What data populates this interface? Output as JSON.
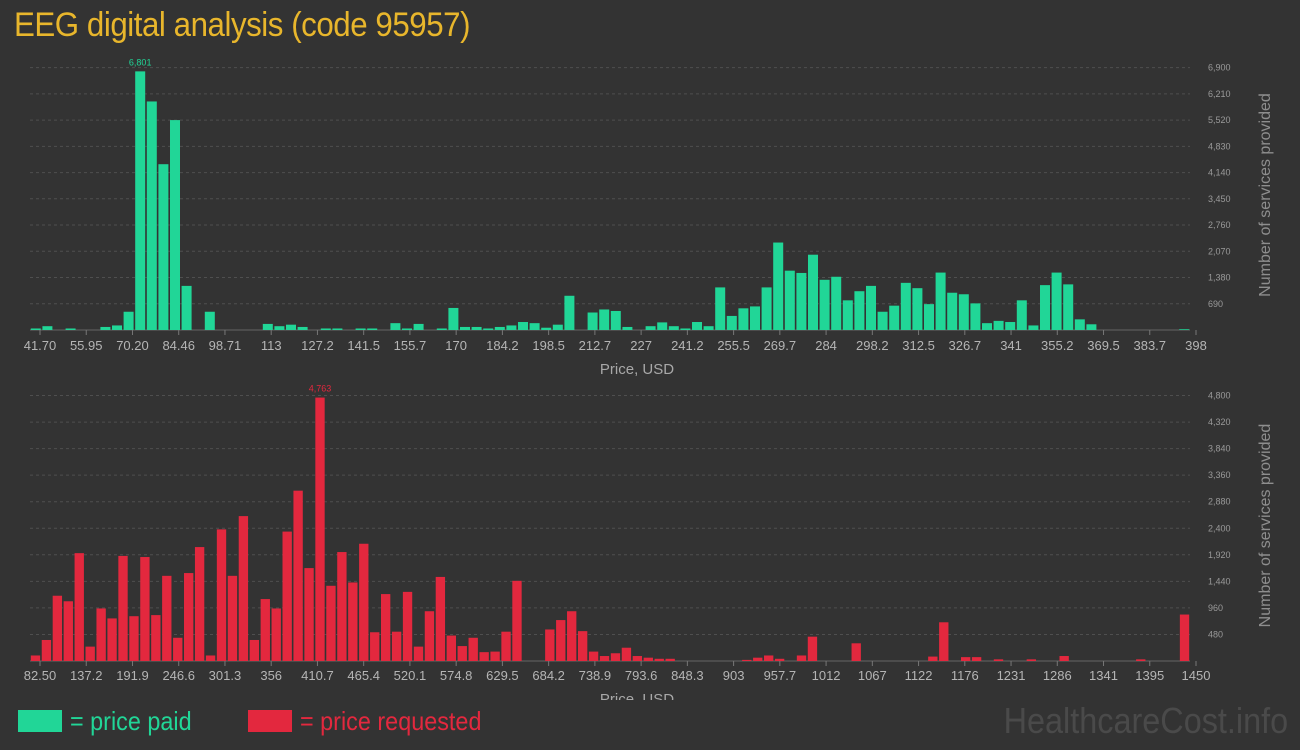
{
  "title": "EEG digital analysis (code 95957)",
  "watermark": "HealthcareCost.info",
  "legend": {
    "paid": {
      "label": "= price paid",
      "color": "#21d697"
    },
    "requested": {
      "label": "= price requested",
      "color": "#e3283e"
    }
  },
  "chart_data": [
    {
      "type": "bar",
      "color": "#21d697",
      "xlabel": "Price, USD",
      "ylabel": "Number of services provided",
      "x_tick_labels": [
        "41.70",
        "55.95",
        "70.20",
        "84.46",
        "98.71",
        "113",
        "127.2",
        "141.5",
        "155.7",
        "170",
        "184.2",
        "198.5",
        "212.7",
        "227",
        "241.2",
        "255.5",
        "269.7",
        "284",
        "298.2",
        "312.5",
        "326.7",
        "341",
        "355.2",
        "369.5",
        "383.7",
        "398"
      ],
      "y_ticks": [
        690,
        1380,
        2070,
        2760,
        3450,
        4140,
        4830,
        5520,
        6210,
        6900
      ],
      "y_tick_labels": [
        "690",
        "1,380",
        "2,070",
        "2,760",
        "3,450",
        "4,140",
        "4,830",
        "5,520",
        "6,210",
        "6,900"
      ],
      "ylim": [
        0,
        7100
      ],
      "x_range": [
        41.7,
        398
      ],
      "peak_label": "6,801",
      "grid": true,
      "values": [
        40,
        100,
        0,
        40,
        0,
        0,
        80,
        120,
        480,
        6801,
        6010,
        4360,
        5520,
        1160,
        0,
        480,
        0,
        0,
        0,
        0,
        160,
        100,
        140,
        80,
        0,
        40,
        40,
        0,
        40,
        40,
        0,
        180,
        40,
        160,
        0,
        40,
        580,
        80,
        80,
        40,
        80,
        120,
        210,
        180,
        60,
        140,
        900,
        0,
        460,
        540,
        500,
        80,
        0,
        100,
        200,
        100,
        40,
        210,
        100,
        1120,
        370,
        570,
        620,
        1120,
        2300,
        1560,
        1500,
        1980,
        1320,
        1400,
        780,
        1020,
        1160,
        480,
        640,
        1240,
        1100,
        680,
        1510,
        980,
        940,
        700,
        180,
        240,
        210,
        780,
        120,
        1180,
        1510,
        1200,
        280,
        150,
        0,
        0,
        0,
        0,
        0,
        0,
        0,
        20
      ]
    },
    {
      "type": "bar",
      "color": "#e3283e",
      "xlabel": "Price, USD",
      "ylabel": "Number of services provided",
      "x_tick_labels": [
        "82.50",
        "137.2",
        "191.9",
        "246.6",
        "301.3",
        "356",
        "410.7",
        "465.4",
        "520.1",
        "574.8",
        "629.5",
        "684.2",
        "738.9",
        "793.6",
        "848.3",
        "903",
        "957.7",
        "1012",
        "1067",
        "1122",
        "1176",
        "1231",
        "1286",
        "1341",
        "1395",
        "1450"
      ],
      "y_ticks": [
        480,
        960,
        1440,
        1920,
        2400,
        2880,
        3360,
        3840,
        4320,
        4800
      ],
      "y_tick_labels": [
        "480",
        "960",
        "1,440",
        "1,920",
        "2,400",
        "2,880",
        "3,360",
        "3,840",
        "4,320",
        "4,800"
      ],
      "ylim": [
        0,
        4900
      ],
      "x_range": [
        82.5,
        1450
      ],
      "peak_label": "4,763",
      "grid": true,
      "values": [
        100,
        380,
        1180,
        1080,
        1950,
        260,
        950,
        770,
        1900,
        810,
        1880,
        830,
        1540,
        420,
        1590,
        2060,
        100,
        2380,
        1540,
        2620,
        380,
        1120,
        950,
        2340,
        3080,
        1680,
        4763,
        1360,
        1970,
        1420,
        2120,
        520,
        1210,
        530,
        1250,
        260,
        900,
        1520,
        460,
        270,
        420,
        160,
        170,
        530,
        1450,
        0,
        0,
        570,
        740,
        900,
        540,
        170,
        90,
        140,
        240,
        90,
        60,
        40,
        40,
        0,
        0,
        0,
        0,
        0,
        0,
        20,
        60,
        100,
        40,
        0,
        100,
        440,
        0,
        0,
        0,
        320,
        0,
        0,
        0,
        0,
        0,
        0,
        80,
        700,
        0,
        70,
        70,
        0,
        30,
        0,
        0,
        30,
        0,
        0,
        90,
        0,
        0,
        0,
        0,
        0,
        0,
        30,
        0,
        0,
        0,
        840
      ]
    }
  ]
}
